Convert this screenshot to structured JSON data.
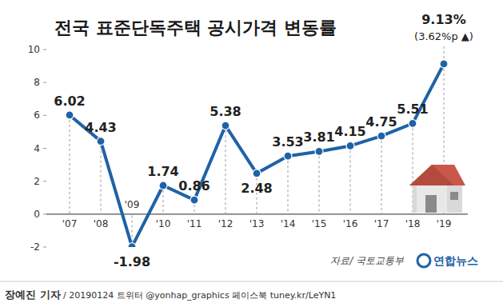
{
  "chart_data": {
    "type": "line",
    "title": "전국 표준단독주택 공시가격 변동률",
    "categories": [
      "'07",
      "'08",
      "'09",
      "'10",
      "'11",
      "'12",
      "'13",
      "'14",
      "'15",
      "'16",
      "'17",
      "'18",
      "'19"
    ],
    "values": [
      6.02,
      4.43,
      -1.98,
      1.74,
      0.86,
      5.38,
      2.48,
      3.53,
      3.81,
      4.15,
      4.75,
      5.51,
      9.13
    ],
    "value_labels": [
      "6.02",
      "4.43",
      "-1.98",
      "1.74",
      "0.86",
      "5.38",
      "2.48",
      "3.53",
      "3.81",
      "4.15",
      "4.75",
      "5.51",
      "9.13%"
    ],
    "color": "#1f62a6",
    "ylim": [
      -2,
      10
    ],
    "yticks": [
      -2,
      0,
      2,
      4,
      6,
      8,
      10
    ],
    "grid": false,
    "data_labels": true,
    "marker": "circle",
    "annotations": [
      "(3.62%p ▲)"
    ],
    "source": "자료/ 국토교통부",
    "logo": "연합뉴스",
    "credit_author": "장예진 기자",
    "credit_info": " / 20190124 트위터 @yonhap_graphics 페이스북 tuney.kr/LeYN1"
  }
}
